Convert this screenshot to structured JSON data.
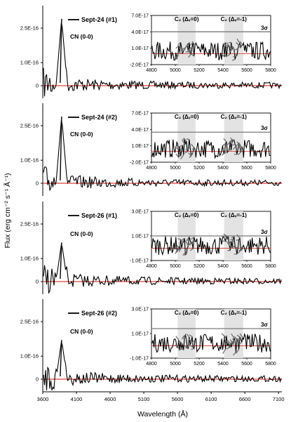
{
  "figure": {
    "ylabel": "Flux (erg cm⁻² s⁻¹ Å⁻¹)",
    "xlabel": "Wavelength (Å)",
    "xticks": [
      "3600",
      "4100",
      "4600",
      "5100",
      "5600",
      "6100",
      "6600",
      "7100"
    ]
  },
  "colors": {
    "spectrum": "#000000",
    "baseline": "#e0403a",
    "band_fill": "#e3e3e3",
    "band_signal": "#707070",
    "threshold": "#7a7a7a"
  },
  "chart_data": [
    {
      "type": "line",
      "legend": "Sept-24 (#1)",
      "annotation": "CN (0-0)",
      "xlim": [
        3600,
        7150
      ],
      "yticks": [
        "2.5E-16",
        "1.0E-16",
        "0"
      ],
      "ytick_values": [
        2.5e-16,
        1e-16,
        0
      ],
      "peak": {
        "x": 3880,
        "y": 2.9e-16
      },
      "inset": {
        "xticks": [
          "4800",
          "5000",
          "5200",
          "5400",
          "5600",
          "5800"
        ],
        "yticks": [
          "7.0E-17",
          "4.0E-17",
          "1.0E-17",
          "-2.0E-17"
        ],
        "ytick_values": [
          7e-17,
          4e-17,
          1e-17,
          -2e-17
        ],
        "threshold_label": "3σ",
        "threshold_value": 4e-17,
        "bands": [
          {
            "label": "C₂ (Δᵥ=0)",
            "range": [
              5020,
              5170
            ]
          },
          {
            "label": "C₂ (Δᵥ=-1)",
            "range": [
              5410,
              5570
            ]
          }
        ]
      }
    },
    {
      "type": "line",
      "legend": "Sept-24 (#2)",
      "annotation": "CN (0-0)",
      "xlim": [
        3600,
        7150
      ],
      "yticks": [
        "2.5E-16",
        "1.0E-16",
        "0"
      ],
      "ytick_values": [
        2.5e-16,
        1e-16,
        0
      ],
      "peak": {
        "x": 3880,
        "y": 2.9e-16
      },
      "inset": {
        "xticks": [
          "4800",
          "5000",
          "5200",
          "5400",
          "5600",
          "5800"
        ],
        "yticks": [
          "7.0E-17",
          "4.0E-17",
          "1.0E-17",
          "-2.0E-17"
        ],
        "ytick_values": [
          7e-17,
          4e-17,
          1e-17,
          -2e-17
        ],
        "threshold_label": "3σ",
        "threshold_value": 3.5e-17,
        "bands": [
          {
            "label": "C₂ (Δᵥ=0)",
            "range": [
              5020,
              5170
            ]
          },
          {
            "label": "C₂ (Δᵥ=-1)",
            "range": [
              5410,
              5570
            ]
          }
        ]
      }
    },
    {
      "type": "line",
      "legend": "Sept-26 (#1)",
      "annotation": "CN (0-0)",
      "xlim": [
        3600,
        7150
      ],
      "yticks": [
        "2.5E-16",
        "1.0E-16",
        "0"
      ],
      "ytick_values": [
        2.5e-16,
        1e-16,
        0
      ],
      "peak": {
        "x": 3880,
        "y": 1.7e-16
      },
      "inset": {
        "xticks": [
          "4800",
          "5000",
          "5200",
          "5400",
          "5600",
          "5800"
        ],
        "yticks": [
          "3.0E-17",
          "1.0E-17",
          "-1.0E-17"
        ],
        "ytick_values": [
          3e-17,
          1e-17,
          -1e-17
        ],
        "threshold_label": "3σ",
        "threshold_value": 1e-17,
        "bands": [
          {
            "label": "C₂ (Δᵥ=0)",
            "range": [
              5020,
              5170
            ]
          },
          {
            "label": "C₂ (Δᵥ=-1)",
            "range": [
              5410,
              5570
            ]
          }
        ]
      }
    },
    {
      "type": "line",
      "legend": "Sept-26 (#2)",
      "annotation": "CN (0-0)",
      "xlim": [
        3600,
        7150
      ],
      "yticks": [
        "2.5E-16",
        "1.0E-16",
        "0"
      ],
      "ytick_values": [
        2.5e-16,
        1e-16,
        0
      ],
      "peak": {
        "x": 3880,
        "y": 1.7e-16
      },
      "inset": {
        "xticks": [
          "4800",
          "5000",
          "5200",
          "5400",
          "5600",
          "5800"
        ],
        "yticks": [
          "3.0E-17",
          "1.0E-17",
          "-1.0E-17"
        ],
        "ytick_values": [
          3e-17,
          1e-17,
          -1e-17
        ],
        "threshold_label": "3σ",
        "threshold_value": 1.4e-17,
        "bands": [
          {
            "label": "C₂ (Δᵥ=0)",
            "range": [
              5020,
              5170
            ]
          },
          {
            "label": "C₂ (Δᵥ=-1)",
            "range": [
              5410,
              5570
            ]
          }
        ]
      }
    }
  ]
}
